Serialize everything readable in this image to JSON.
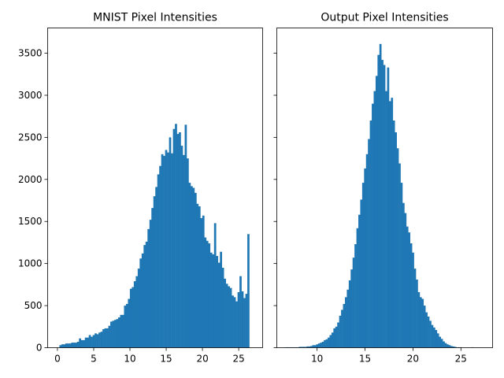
{
  "chart_data": [
    {
      "type": "bar",
      "title": "MNIST Pixel Intensities",
      "xlabel": "",
      "ylabel": "",
      "xlim": [
        -1.35,
        28.3
      ],
      "ylim": [
        0,
        3800
      ],
      "xticks": [
        0,
        5,
        10,
        15,
        20,
        25
      ],
      "yticks": [
        0,
        500,
        1000,
        1500,
        2000,
        2500,
        3000,
        3500
      ],
      "color": "#1f77b4",
      "bin_start": 0.0,
      "bin_width": 0.27,
      "values": [
        0,
        30,
        40,
        40,
        50,
        50,
        50,
        60,
        60,
        60,
        70,
        110,
        90,
        90,
        120,
        120,
        150,
        130,
        150,
        170,
        160,
        180,
        190,
        220,
        230,
        230,
        260,
        310,
        320,
        330,
        340,
        360,
        390,
        390,
        500,
        520,
        580,
        700,
        720,
        790,
        850,
        940,
        1060,
        1120,
        1220,
        1260,
        1410,
        1520,
        1660,
        1800,
        1910,
        2060,
        2160,
        2300,
        2280,
        2350,
        2320,
        2500,
        2310,
        2600,
        2660,
        2540,
        2560,
        2400,
        2290,
        2650,
        2250,
        1960,
        1920,
        1900,
        1840,
        1710,
        1680,
        1540,
        1570,
        1310,
        1270,
        1240,
        1130,
        1110,
        1480,
        1090,
        1010,
        1140,
        950,
        820,
        760,
        730,
        710,
        620,
        600,
        550,
        660,
        850,
        670,
        590,
        640,
        1350
      ]
    },
    {
      "type": "bar",
      "title": "Output Pixel Intensities",
      "xlabel": "",
      "ylabel": "",
      "xlim": [
        5.8,
        28.3
      ],
      "ylim": [
        0,
        3800
      ],
      "xticks": [
        10,
        15,
        20,
        25
      ],
      "yticks": [
        0,
        500,
        1000,
        1500,
        2000,
        2500,
        3000,
        3500
      ],
      "color": "#1f77b4",
      "bin_start": 6.7,
      "bin_width": 0.2,
      "values": [
        5,
        5,
        5,
        5,
        5,
        5,
        5,
        10,
        10,
        10,
        10,
        15,
        15,
        20,
        30,
        30,
        40,
        50,
        60,
        70,
        90,
        100,
        120,
        150,
        180,
        230,
        250,
        300,
        380,
        450,
        520,
        600,
        690,
        800,
        930,
        1070,
        1230,
        1420,
        1580,
        1760,
        1960,
        2130,
        2300,
        2480,
        2700,
        2900,
        3050,
        3230,
        3480,
        3610,
        3420,
        3360,
        3050,
        3330,
        2930,
        2970,
        2700,
        2560,
        2370,
        2190,
        1960,
        1720,
        1600,
        1440,
        1370,
        1240,
        1130,
        940,
        810,
        660,
        600,
        580,
        500,
        420,
        370,
        320,
        270,
        240,
        210,
        170,
        130,
        105,
        75,
        55,
        40,
        30,
        20,
        15,
        10,
        5,
        5,
        5,
        0,
        0,
        0,
        0,
        0,
        5
      ]
    }
  ]
}
